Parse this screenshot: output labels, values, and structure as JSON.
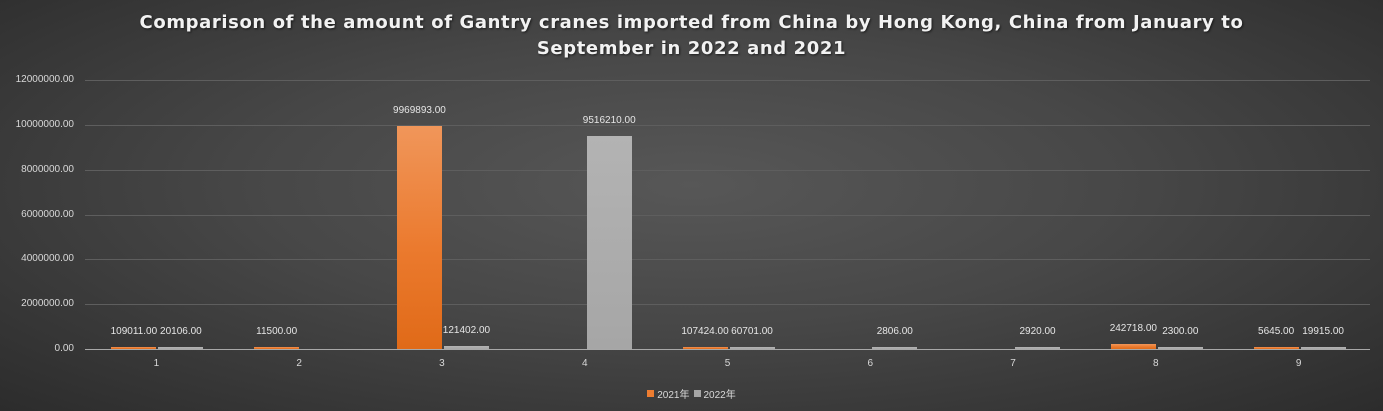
{
  "chart_data": {
    "type": "bar",
    "title": "Comparison of the amount of Gantry cranes imported from China by Hong Kong, China from January to September in 2022 and 2021",
    "title_lines": [
      "Comparison of the amount of Gantry cranes imported from China by Hong Kong, China from January to",
      "September in 2022 and 2021"
    ],
    "xlabel": "",
    "ylabel": "",
    "categories": [
      "1",
      "2",
      "3",
      "4",
      "5",
      "6",
      "7",
      "8",
      "9"
    ],
    "series": [
      {
        "name": "2021年",
        "color": "#ED7D31",
        "values": [
          109011.0,
          11500.0,
          9969893.0,
          null,
          107424.0,
          null,
          null,
          242718.0,
          5645.0
        ],
        "labels": [
          "109011.00",
          "11500.00",
          "9969893.00",
          "",
          "107424.00",
          "",
          "",
          "242718.00",
          "5645.00"
        ]
      },
      {
        "name": "2022年",
        "color": "#A5A5A5",
        "values": [
          20106.0,
          null,
          121402.0,
          9516210.0,
          60701.0,
          2806.0,
          2920.0,
          2300.0,
          19915.0
        ],
        "labels": [
          "20106.00",
          "",
          "121402.00",
          "9516210.00",
          "60701.00",
          "2806.00",
          "2920.00",
          "2300.00",
          "19915.00"
        ]
      }
    ],
    "ylim": [
      0,
      12000000
    ],
    "yticks": [
      0,
      2000000,
      4000000,
      6000000,
      8000000,
      10000000,
      12000000
    ],
    "ytick_labels": [
      "0.00",
      "2000000.00",
      "4000000.00",
      "6000000.00",
      "8000000.00",
      "10000000.00",
      "12000000.00"
    ],
    "grid": true,
    "legend_position": "bottom"
  }
}
